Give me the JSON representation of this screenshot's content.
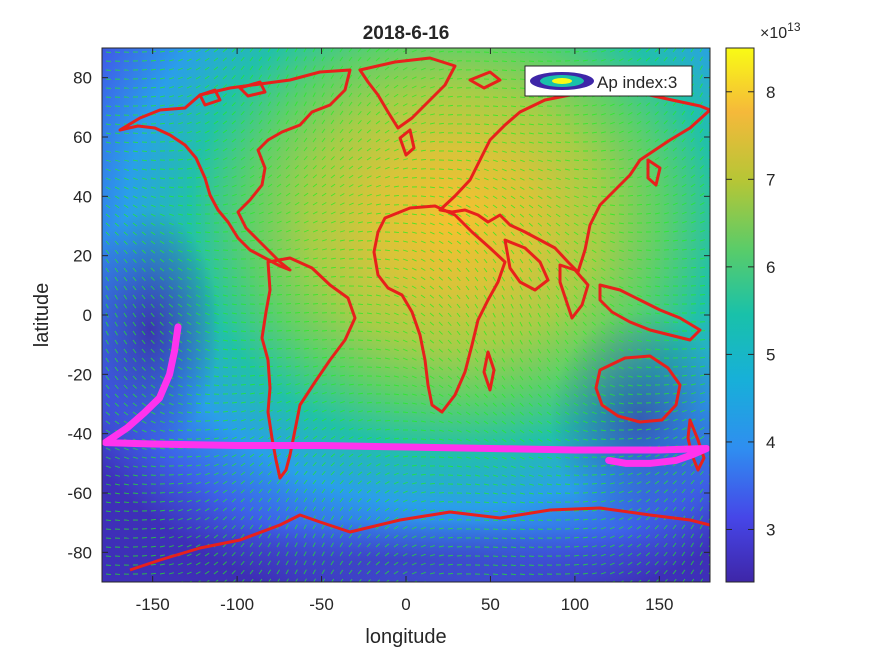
{
  "chart_data": {
    "type": "heatmap",
    "title": "2018-6-16",
    "xlabel": "longitude",
    "ylabel": "latitude",
    "xlim": [
      -180,
      180
    ],
    "ylim": [
      -90,
      90
    ],
    "xticks": [
      -150,
      -100,
      -50,
      0,
      50,
      100,
      150
    ],
    "yticks": [
      -80,
      -60,
      -40,
      -20,
      0,
      20,
      40,
      60,
      80
    ],
    "grid": false,
    "legend": {
      "position": "top-right",
      "entries": [
        "Ap index:3"
      ]
    },
    "colorbar": {
      "range": [
        2.4,
        8.5
      ],
      "ticks": [
        3,
        4,
        5,
        6,
        7,
        8
      ],
      "exponent_base": "×10",
      "exponent": "13",
      "colormap": "parula"
    },
    "heatmap_peak": {
      "longitude": 20,
      "latitude": 30,
      "value": 8.2
    },
    "vector_field": {
      "color": "#22ee22",
      "description_rows": 60
    },
    "coastline_color": "#e8201c",
    "track": {
      "color": "#ff33ee",
      "points": [
        [
          -135,
          -4
        ],
        [
          -137,
          -12
        ],
        [
          -140,
          -20
        ],
        [
          -146,
          -28
        ],
        [
          -155,
          -33
        ],
        [
          -165,
          -38
        ],
        [
          -178,
          -43
        ],
        [
          -150,
          -43.5
        ],
        [
          -100,
          -44
        ],
        [
          -50,
          -44
        ],
        [
          0,
          -44.5
        ],
        [
          50,
          -45
        ],
        [
          100,
          -45.5
        ],
        [
          150,
          -45.5
        ],
        [
          178,
          -45
        ],
        [
          170,
          -47
        ],
        [
          160,
          -49
        ],
        [
          145,
          -50
        ],
        [
          130,
          -50
        ],
        [
          120,
          -49
        ]
      ]
    }
  }
}
